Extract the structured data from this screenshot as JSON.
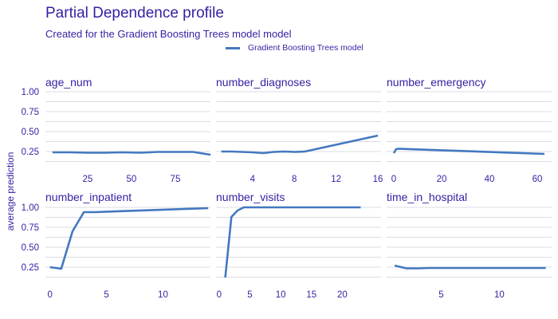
{
  "title": "Partial Dependence profile",
  "subtitle": "Created for the Gradient Boosting Trees model model",
  "ylabel": "average prediction",
  "legend": {
    "label": "Gradient Boosting Trees model",
    "color": "#4378bf"
  },
  "chart_data": {
    "type": "line",
    "ylim": [
      0.12,
      1.02
    ],
    "yticks": [
      0.25,
      0.5,
      0.75,
      1.0
    ],
    "ytick_labels": [
      "0.25",
      "0.50",
      "0.75",
      "1.00"
    ],
    "grid": true,
    "legend_position": "top",
    "color": "#4378bf",
    "panels": [
      {
        "title": "age_num",
        "xlim": [
          1,
          95
        ],
        "xticks": [
          25,
          50,
          75
        ],
        "x": [
          5,
          15,
          25,
          35,
          45,
          55,
          65,
          75,
          85,
          95
        ],
        "y": [
          0.24,
          0.24,
          0.235,
          0.235,
          0.24,
          0.235,
          0.245,
          0.245,
          0.245,
          0.21
        ]
      },
      {
        "title": "number_diagnoses",
        "xlim": [
          0.5,
          16.3
        ],
        "xticks": [
          4,
          8,
          12,
          16
        ],
        "x": [
          1,
          2,
          3,
          4,
          5,
          6,
          7,
          8,
          9,
          16
        ],
        "y": [
          0.25,
          0.25,
          0.245,
          0.24,
          0.23,
          0.245,
          0.25,
          0.245,
          0.25,
          0.45
        ]
      },
      {
        "title": "number_emergency",
        "xlim": [
          -3,
          66
        ],
        "xticks": [
          0,
          20,
          40,
          60
        ],
        "x": [
          0,
          1,
          2,
          63
        ],
        "y": [
          0.23,
          0.28,
          0.285,
          0.22
        ]
      },
      {
        "title": "number_inpatient",
        "xlim": [
          -0.4,
          14.2
        ],
        "xticks": [
          0,
          5,
          10
        ],
        "x": [
          0,
          1,
          2,
          3,
          4,
          14
        ],
        "y": [
          0.25,
          0.23,
          0.7,
          0.94,
          0.94,
          0.99
        ]
      },
      {
        "title": "number_visits",
        "xlim": [
          -0.5,
          26.3
        ],
        "xticks": [
          0,
          5,
          10,
          15,
          20
        ],
        "x": [
          1,
          2,
          3,
          4,
          5,
          23
        ],
        "y": [
          0.11,
          0.88,
          0.96,
          1.0,
          1.0,
          1.0
        ]
      },
      {
        "title": "time_in_hospital",
        "xlim": [
          0.3,
          14.5
        ],
        "xticks": [
          5,
          10
        ],
        "x": [
          1,
          2,
          3,
          4,
          14
        ],
        "y": [
          0.27,
          0.235,
          0.235,
          0.24,
          0.24
        ]
      }
    ]
  }
}
